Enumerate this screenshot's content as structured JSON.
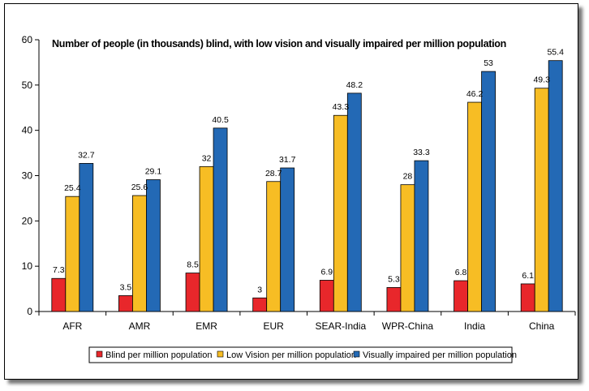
{
  "chart_data": {
    "type": "bar",
    "title": "Number of people (in thousands)  blind, with low vision and visually impaired per million population",
    "xlabel": "",
    "ylabel": "",
    "ylim": [
      0,
      60
    ],
    "yticks": [
      0,
      10,
      20,
      30,
      40,
      50,
      60
    ],
    "ytick_labels": [
      "0",
      "10",
      "20",
      "30",
      "40",
      "50",
      "60"
    ],
    "categories": [
      "AFR",
      "AMR",
      "EMR",
      "EUR",
      "SEAR-India",
      "WPR-China",
      "India",
      "China"
    ],
    "series": [
      {
        "name": "Blind per million population",
        "color": "#e8272b",
        "values": [
          7.3,
          3.5,
          8.5,
          3,
          6.9,
          5.3,
          6.8,
          6.1
        ],
        "labels": [
          "7.3",
          "3.5",
          "8.5",
          "3",
          "6.9",
          "5.3",
          "6.8",
          "6.1"
        ]
      },
      {
        "name": "Low Vision per million population",
        "color": "#f7bd24",
        "values": [
          25.4,
          25.6,
          32,
          28.7,
          43.3,
          28,
          46.2,
          49.3
        ],
        "labels": [
          "25.4",
          "25.6",
          "32",
          "28.7",
          "43.3",
          "28",
          "46.2",
          "49.3"
        ]
      },
      {
        "name": "Visually impaired per million population",
        "color": "#2369b5",
        "values": [
          32.7,
          29.1,
          40.5,
          31.7,
          48.2,
          33.3,
          53,
          55.4
        ],
        "labels": [
          "32.7",
          "29.1",
          "40.5",
          "31.7",
          "48.2",
          "33.3",
          "53",
          "55.4"
        ]
      }
    ],
    "legend_position": "bottom",
    "grid": false
  }
}
